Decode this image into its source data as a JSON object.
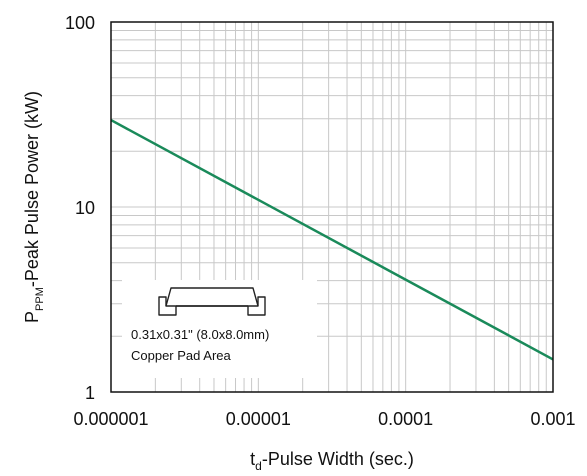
{
  "chart_data": {
    "type": "line",
    "title": "",
    "x_scale": "log",
    "y_scale": "log",
    "xlim": [
      1e-06,
      0.001
    ],
    "ylim": [
      1,
      100
    ],
    "x_ticks": [
      {
        "value": 1e-06,
        "label": "0.000001"
      },
      {
        "value": 1e-05,
        "label": "0.00001"
      },
      {
        "value": 0.0001,
        "label": "0.0001"
      },
      {
        "value": 0.001,
        "label": "0.001"
      }
    ],
    "y_ticks": [
      {
        "value": 1,
        "label": "1"
      },
      {
        "value": 10,
        "label": "10"
      },
      {
        "value": 100,
        "label": "100"
      }
    ],
    "xlabel": {
      "prefix": "t",
      "sub": "d",
      "text": "-Pulse Width (sec.)"
    },
    "ylabel": {
      "prefix": "P",
      "sub": "PPM",
      "text": "-Peak Pulse Power (kW)"
    },
    "grid": true,
    "series": [
      {
        "color": "#1a8a5a",
        "x": [
          1e-06,
          0.001
        ],
        "y": [
          29.5,
          1.5
        ]
      }
    ],
    "annotations": {
      "line1": "0.31x0.31\" (8.0x8.0mm)",
      "line2": "Copper Pad Area",
      "icon": "copper-pad-icon"
    }
  },
  "colors": {
    "line": "#1a8a5a",
    "grid": "#c8c8c8",
    "frame": "#111111"
  }
}
